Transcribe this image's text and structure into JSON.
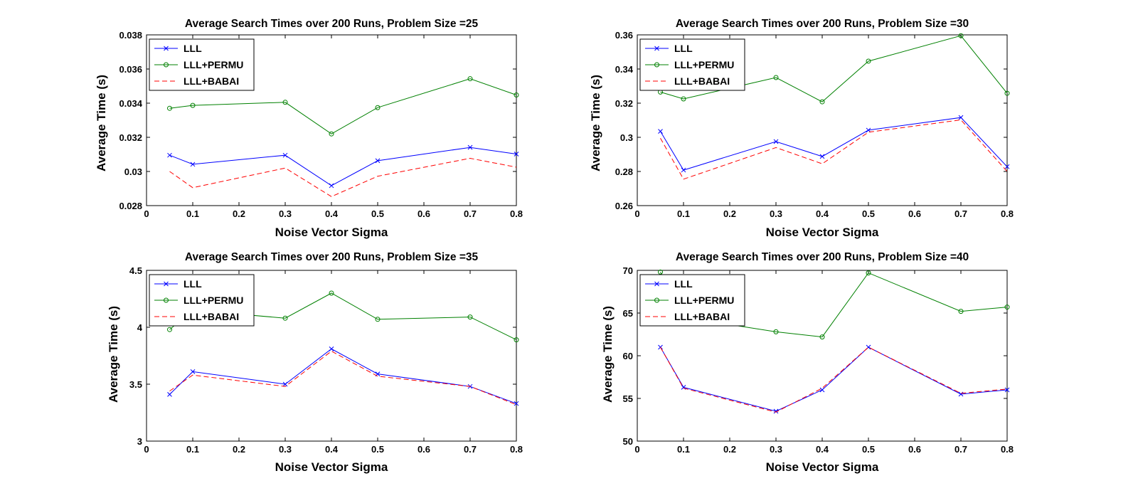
{
  "chart_data": [
    {
      "type": "line",
      "title": "Average Search Times over 200 Runs, Problem Size =25",
      "xlabel": "Noise Vector Sigma",
      "ylabel": "Average Time (s)",
      "xlim": [
        0,
        0.8
      ],
      "ylim": [
        0.028,
        0.038
      ],
      "xticks": [
        0,
        0.1,
        0.2,
        0.3,
        0.4,
        0.5,
        0.6,
        0.7,
        0.8
      ],
      "xtick_labels": [
        "0",
        "0.1",
        "0.2",
        "0.3",
        "0.4",
        "0.5",
        "0.6",
        "0.7",
        "0.8"
      ],
      "yticks": [
        0.028,
        0.03,
        0.032,
        0.034,
        0.036,
        0.038
      ],
      "ytick_labels": [
        "0.028",
        "0.03",
        "0.032",
        "0.034",
        "0.036",
        "0.038"
      ],
      "x": [
        0.05,
        0.1,
        0.3,
        0.4,
        0.5,
        0.7,
        0.8
      ],
      "grid": false,
      "legend_position": "top-left",
      "series": [
        {
          "name": "LLL",
          "color": "#0000ff",
          "marker": "x",
          "dash": "solid",
          "values": [
            0.03095,
            0.03042,
            0.03095,
            0.02917,
            0.03063,
            0.03141,
            0.03102
          ]
        },
        {
          "name": "LLL+PERMU",
          "color": "#008000",
          "marker": "o",
          "dash": "solid",
          "values": [
            0.0337,
            0.03387,
            0.03405,
            0.0322,
            0.03374,
            0.03543,
            0.03448
          ]
        },
        {
          "name": "LLL+BABAI",
          "color": "#ff0000",
          "marker": "none",
          "dash": "dashed",
          "values": [
            0.03,
            0.02905,
            0.0302,
            0.02853,
            0.02972,
            0.03077,
            0.03025
          ]
        }
      ]
    },
    {
      "type": "line",
      "title": "Average Search Times over 200 Runs, Problem Size =30",
      "xlabel": "Noise Vector Sigma",
      "ylabel": "Average Time (s)",
      "xlim": [
        0,
        0.8
      ],
      "ylim": [
        0.26,
        0.36
      ],
      "xticks": [
        0,
        0.1,
        0.2,
        0.3,
        0.4,
        0.5,
        0.6,
        0.7,
        0.8
      ],
      "xtick_labels": [
        "0",
        "0.1",
        "0.2",
        "0.3",
        "0.4",
        "0.5",
        "0.6",
        "0.7",
        "0.8"
      ],
      "yticks": [
        0.26,
        0.28,
        0.3,
        0.32,
        0.34,
        0.36
      ],
      "ytick_labels": [
        "0.26",
        "0.28",
        "0.3",
        "0.32",
        "0.34",
        "0.36"
      ],
      "x": [
        0.05,
        0.1,
        0.3,
        0.4,
        0.5,
        0.7,
        0.8
      ],
      "grid": false,
      "legend_position": "top-left",
      "series": [
        {
          "name": "LLL",
          "color": "#0000ff",
          "marker": "x",
          "dash": "solid",
          "values": [
            0.3035,
            0.2808,
            0.2975,
            0.2888,
            0.3042,
            0.3116,
            0.2828
          ]
        },
        {
          "name": "LLL+PERMU",
          "color": "#008000",
          "marker": "o",
          "dash": "solid",
          "values": [
            0.3265,
            0.3225,
            0.335,
            0.3208,
            0.3446,
            0.3595,
            0.3258
          ]
        },
        {
          "name": "LLL+BABAI",
          "color": "#ff0000",
          "marker": "none",
          "dash": "dashed",
          "values": [
            0.2995,
            0.2755,
            0.294,
            0.2845,
            0.303,
            0.3102,
            0.28
          ]
        }
      ]
    },
    {
      "type": "line",
      "title": "Average Search Times over 200 Runs, Problem Size =35",
      "xlabel": "Noise Vector Sigma",
      "ylabel": "Average Time (s)",
      "xlim": [
        0,
        0.8
      ],
      "ylim": [
        3,
        4.5
      ],
      "xticks": [
        0,
        0.1,
        0.2,
        0.3,
        0.4,
        0.5,
        0.6,
        0.7,
        0.8
      ],
      "xtick_labels": [
        "0",
        "0.1",
        "0.2",
        "0.3",
        "0.4",
        "0.5",
        "0.6",
        "0.7",
        "0.8"
      ],
      "yticks": [
        3,
        3.5,
        4,
        4.5
      ],
      "ytick_labels": [
        "3",
        "3.5",
        "4",
        "4.5"
      ],
      "x": [
        0.05,
        0.1,
        0.3,
        0.4,
        0.5,
        0.7,
        0.8
      ],
      "grid": false,
      "legend_position": "top-left",
      "series": [
        {
          "name": "LLL",
          "color": "#0000ff",
          "marker": "x",
          "dash": "solid",
          "values": [
            3.41,
            3.61,
            3.5,
            3.81,
            3.59,
            3.48,
            3.33
          ]
        },
        {
          "name": "LLL+PERMU",
          "color": "#008000",
          "marker": "o",
          "dash": "solid",
          "values": [
            3.98,
            4.15,
            4.08,
            4.3,
            4.07,
            4.09,
            3.89
          ]
        },
        {
          "name": "LLL+BABAI",
          "color": "#ff0000",
          "marker": "none",
          "dash": "dashed",
          "values": [
            3.44,
            3.58,
            3.48,
            3.79,
            3.57,
            3.48,
            3.32
          ]
        }
      ]
    },
    {
      "type": "line",
      "title": "Average Search Times over 200 Runs, Problem Size =40",
      "xlabel": "Noise Vector Sigma",
      "ylabel": "Average Time (s)",
      "xlim": [
        0,
        0.8
      ],
      "ylim": [
        50,
        70
      ],
      "xticks": [
        0,
        0.1,
        0.2,
        0.3,
        0.4,
        0.5,
        0.6,
        0.7,
        0.8
      ],
      "xtick_labels": [
        "0",
        "0.1",
        "0.2",
        "0.3",
        "0.4",
        "0.5",
        "0.6",
        "0.7",
        "0.8"
      ],
      "yticks": [
        50,
        55,
        60,
        65,
        70
      ],
      "ytick_labels": [
        "50",
        "55",
        "60",
        "65",
        "70"
      ],
      "x": [
        0.05,
        0.1,
        0.3,
        0.4,
        0.5,
        0.7,
        0.8
      ],
      "grid": false,
      "legend_position": "top-left",
      "series": [
        {
          "name": "LLL",
          "color": "#0000ff",
          "marker": "x",
          "dash": "solid",
          "values": [
            61.0,
            56.3,
            53.5,
            56.0,
            61.0,
            55.5,
            56.0
          ]
        },
        {
          "name": "LLL+PERMU",
          "color": "#008000",
          "marker": "o",
          "dash": "solid",
          "values": [
            69.8,
            64.5,
            62.8,
            62.2,
            69.7,
            65.2,
            65.7
          ]
        },
        {
          "name": "LLL+BABAI",
          "color": "#ff0000",
          "marker": "none",
          "dash": "dashed",
          "values": [
            61.0,
            56.2,
            53.4,
            56.2,
            61.0,
            55.6,
            56.1
          ]
        }
      ]
    }
  ]
}
